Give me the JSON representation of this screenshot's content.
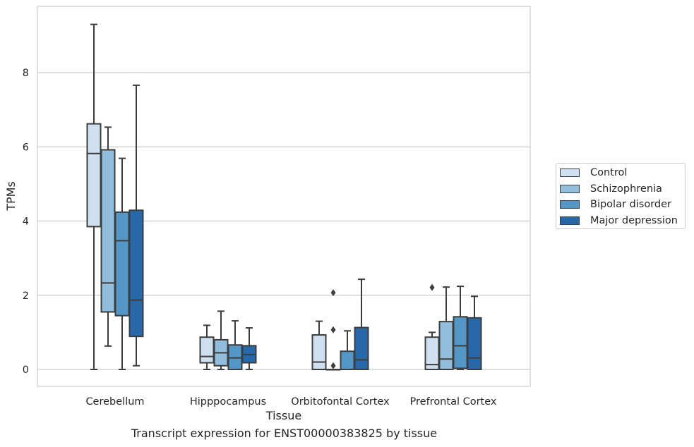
{
  "caption": "Transcript expression for ENST00000383825 by tissue",
  "chart_data": {
    "type": "box",
    "xlabel": "Tissue",
    "ylabel": "TPMs",
    "ylim": [
      -0.45,
      9.7
    ],
    "yticks": [
      0,
      2,
      4,
      6,
      8
    ],
    "grid": "horizontal",
    "legend_position": "right",
    "categories": [
      "Cerebellum",
      "Hipppocampus",
      "Orbitofontal Cortex",
      "Prefrontal Cortex"
    ],
    "series": [
      {
        "name": "Control",
        "color": "#cfe0f0",
        "boxes": [
          {
            "min": 0.0,
            "q1": 3.85,
            "median": 5.82,
            "q3": 6.62,
            "max": 9.3,
            "outliers": []
          },
          {
            "min": 0.0,
            "q1": 0.18,
            "median": 0.35,
            "q3": 0.87,
            "max": 1.19,
            "outliers": []
          },
          {
            "min": 0.0,
            "q1": 0.0,
            "median": 0.2,
            "q3": 0.93,
            "max": 1.3,
            "outliers": []
          },
          {
            "min": 0.0,
            "q1": 0.0,
            "median": 0.13,
            "q3": 0.87,
            "max": 1.0,
            "outliers": [
              2.21
            ]
          }
        ]
      },
      {
        "name": "Schizophrenia",
        "color": "#93bedb",
        "boxes": [
          {
            "min": 0.63,
            "q1": 1.55,
            "median": 2.33,
            "q3": 5.92,
            "max": 6.53,
            "outliers": []
          },
          {
            "min": 0.0,
            "q1": 0.1,
            "median": 0.45,
            "q3": 0.8,
            "max": 1.57,
            "outliers": []
          },
          {
            "min": 0.0,
            "q1": 0.0,
            "median": 0.0,
            "q3": 0.0,
            "max": 0.0,
            "outliers": [
              0.1,
              1.07,
              2.07
            ]
          },
          {
            "min": 0.0,
            "q1": 0.0,
            "median": 0.28,
            "q3": 1.29,
            "max": 2.22,
            "outliers": []
          }
        ]
      },
      {
        "name": "Bipolar disorder",
        "color": "#5497c6",
        "boxes": [
          {
            "min": 0.0,
            "q1": 1.45,
            "median": 3.47,
            "q3": 4.24,
            "max": 5.69,
            "outliers": []
          },
          {
            "min": 0.0,
            "q1": 0.0,
            "median": 0.31,
            "q3": 0.66,
            "max": 1.31,
            "outliers": []
          },
          {
            "min": 0.0,
            "q1": 0.0,
            "median": 0.0,
            "q3": 0.49,
            "max": 1.04,
            "outliers": []
          },
          {
            "min": 0.0,
            "q1": 0.03,
            "median": 0.64,
            "q3": 1.42,
            "max": 2.24,
            "outliers": []
          }
        ]
      },
      {
        "name": "Major depression",
        "color": "#2868a8",
        "boxes": [
          {
            "min": 0.1,
            "q1": 0.89,
            "median": 1.87,
            "q3": 4.29,
            "max": 7.66,
            "outliers": []
          },
          {
            "min": 0.0,
            "q1": 0.18,
            "median": 0.4,
            "q3": 0.64,
            "max": 1.12,
            "outliers": []
          },
          {
            "min": 0.0,
            "q1": 0.0,
            "median": 0.26,
            "q3": 1.13,
            "max": 2.43,
            "outliers": []
          },
          {
            "min": 0.0,
            "q1": 0.0,
            "median": 0.31,
            "q3": 1.39,
            "max": 1.97,
            "outliers": []
          }
        ]
      }
    ]
  }
}
